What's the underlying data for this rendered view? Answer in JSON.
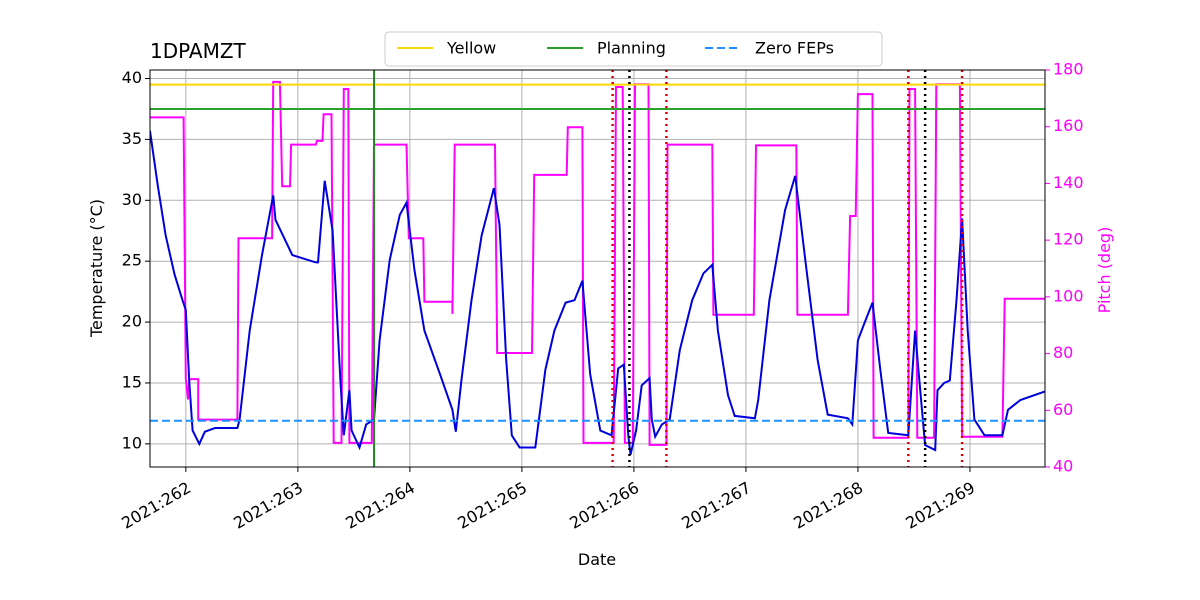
{
  "chart_data": {
    "type": "line",
    "title": "1DPAMZT",
    "xlabel": "Date",
    "ylabel": "Temperature (°C)",
    "y2label": "Pitch (deg)",
    "y2color": "#ff00ff",
    "xlim": [
      261.68,
      269.67
    ],
    "xticks": [
      {
        "value": 262,
        "label": "2021:262"
      },
      {
        "value": 263,
        "label": "2021:263"
      },
      {
        "value": 264,
        "label": "2021:264"
      },
      {
        "value": 265,
        "label": "2021:265"
      },
      {
        "value": 266,
        "label": "2021:266"
      },
      {
        "value": 267,
        "label": "2021:267"
      },
      {
        "value": 268,
        "label": "2021:268"
      },
      {
        "value": 269,
        "label": "2021:269"
      }
    ],
    "ylim": [
      8.1,
      40.7
    ],
    "yticks": [
      10,
      15,
      20,
      25,
      30,
      35,
      40
    ],
    "y2lim": [
      40,
      180
    ],
    "y2ticks": [
      40,
      60,
      80,
      100,
      120,
      140,
      160,
      180
    ],
    "grid": true,
    "legend": "upper center",
    "series": [
      {
        "color": "#ff00ff",
        "axis": "y2",
        "x": [
          261.68,
          261.98,
          262.0,
          262.02,
          262.03,
          262.11,
          262.11,
          262.46,
          262.47,
          262.77,
          262.78,
          262.84,
          262.86,
          262.93,
          262.94,
          263.16,
          263.17,
          263.22,
          263.23,
          263.3,
          263.32,
          263.39,
          263.41,
          263.45,
          263.46,
          263.66,
          263.68,
          263.97,
          263.99,
          264.12,
          264.13,
          264.38,
          264.38,
          264.4,
          264.76,
          264.78,
          265.09,
          265.11,
          265.4,
          265.41,
          265.54,
          265.55,
          265.82,
          265.84,
          265.9,
          265.92,
          265.99,
          266.01,
          266.13,
          266.14,
          266.29,
          266.3,
          266.7,
          266.71,
          267.07,
          267.09,
          267.45,
          267.46,
          267.91,
          267.93,
          267.98,
          268.0,
          268.13,
          268.14,
          268.45,
          268.46,
          268.51,
          268.53,
          268.68,
          268.7,
          268.91,
          268.93,
          269.29,
          269.31,
          269.67
        ],
        "values": [
          163.3,
          163.3,
          71.0,
          63.8,
          71.0,
          71.0,
          56.7,
          56.7,
          120.7,
          120.7,
          175.8,
          175.8,
          139.0,
          139.0,
          153.7,
          153.7,
          155.0,
          155.0,
          164.4,
          164.4,
          48.5,
          48.5,
          173.3,
          173.3,
          48.5,
          48.5,
          153.7,
          153.7,
          120.7,
          120.7,
          98.3,
          98.3,
          94.0,
          153.7,
          153.7,
          80.2,
          80.2,
          143.0,
          143.0,
          159.8,
          159.8,
          48.5,
          48.5,
          174.0,
          174.0,
          48.5,
          48.5,
          175.0,
          175.0,
          47.8,
          47.8,
          153.7,
          153.7,
          93.7,
          93.7,
          153.4,
          153.4,
          93.7,
          93.7,
          128.5,
          128.5,
          171.5,
          171.5,
          50.3,
          50.3,
          173.3,
          173.3,
          50.3,
          50.3,
          175.0,
          175.0,
          50.7,
          50.7,
          99.3,
          99.3
        ]
      },
      {
        "color": "#0000dd",
        "axis": "y",
        "x": [
          261.68,
          261.75,
          261.82,
          261.9,
          261.97,
          262.0,
          262.03,
          262.06,
          262.12,
          262.17,
          262.26,
          262.46,
          262.48,
          262.57,
          262.68,
          262.78,
          262.8,
          262.95,
          263.16,
          263.18,
          263.24,
          263.31,
          263.38,
          263.41,
          263.46,
          263.48,
          263.55,
          263.61,
          263.68,
          263.73,
          263.82,
          263.91,
          263.97,
          264.04,
          264.13,
          264.27,
          264.38,
          264.41,
          264.46,
          264.55,
          264.64,
          264.75,
          264.8,
          264.86,
          264.91,
          264.98,
          265.12,
          265.21,
          265.29,
          265.39,
          265.47,
          265.54,
          265.61,
          265.7,
          265.8,
          265.86,
          265.91,
          265.95,
          265.97,
          266.02,
          266.07,
          266.14,
          266.16,
          266.19,
          266.25,
          266.32,
          266.41,
          266.52,
          266.62,
          266.7,
          266.75,
          266.84,
          266.9,
          267.08,
          267.11,
          267.21,
          267.35,
          267.44,
          267.53,
          267.64,
          267.73,
          267.91,
          267.95,
          268.0,
          268.07,
          268.13,
          268.2,
          268.27,
          268.45,
          268.51,
          268.54,
          268.6,
          268.69,
          268.71,
          268.77,
          268.82,
          268.88,
          268.93,
          268.98,
          269.04,
          269.13,
          269.29,
          269.34,
          269.45,
          269.67
        ],
        "values": [
          35.7,
          31.2,
          27.1,
          23.9,
          21.8,
          21.0,
          15.2,
          11.1,
          10.0,
          11.0,
          11.3,
          11.3,
          12.0,
          19.3,
          25.5,
          30.4,
          28.4,
          25.5,
          24.9,
          24.9,
          31.6,
          27.5,
          15.2,
          10.7,
          14.4,
          11.1,
          9.7,
          11.6,
          12.0,
          18.5,
          25.1,
          28.8,
          29.8,
          24.3,
          19.3,
          15.7,
          12.8,
          11.0,
          15.2,
          21.8,
          27.1,
          31.0,
          28.0,
          16.9,
          10.7,
          9.7,
          9.7,
          16.1,
          19.3,
          21.6,
          21.8,
          23.4,
          15.7,
          11.1,
          10.7,
          16.2,
          16.5,
          10.7,
          9.1,
          11.1,
          14.8,
          15.4,
          12.0,
          10.6,
          11.6,
          12.0,
          17.7,
          21.8,
          24.0,
          24.7,
          19.3,
          14.0,
          12.3,
          12.1,
          13.6,
          21.8,
          29.2,
          32.0,
          25.1,
          16.9,
          12.4,
          12.1,
          11.6,
          18.5,
          20.2,
          21.6,
          16.1,
          10.9,
          10.7,
          19.3,
          16.1,
          9.9,
          9.5,
          14.4,
          15.0,
          15.2,
          21.8,
          28.5,
          19.3,
          12.0,
          10.7,
          10.7,
          12.8,
          13.6,
          14.3
        ]
      }
    ],
    "hlines": [
      {
        "name": "Yellow",
        "value": 39.5,
        "color": "#ffd700",
        "style": "solid"
      },
      {
        "name": "Planning",
        "value": 37.5,
        "color": "#2ca02c",
        "style": "solid"
      },
      {
        "name": "Zero FEPs",
        "value": 11.9,
        "color": "#1e90ff",
        "style": "dashed"
      }
    ],
    "vlines": [
      {
        "x": 263.68,
        "color": "#228b22",
        "style": "solid"
      },
      {
        "x": 265.81,
        "color": "#e00000",
        "style": "dotted"
      },
      {
        "x": 266.29,
        "color": "#e00000",
        "style": "dotted"
      },
      {
        "x": 268.45,
        "color": "#e00000",
        "style": "dotted"
      },
      {
        "x": 268.93,
        "color": "#e00000",
        "style": "dotted"
      },
      {
        "x": 265.96,
        "color": "#000000",
        "style": "dotted"
      },
      {
        "x": 268.6,
        "color": "#000000",
        "style": "dotted"
      }
    ]
  }
}
